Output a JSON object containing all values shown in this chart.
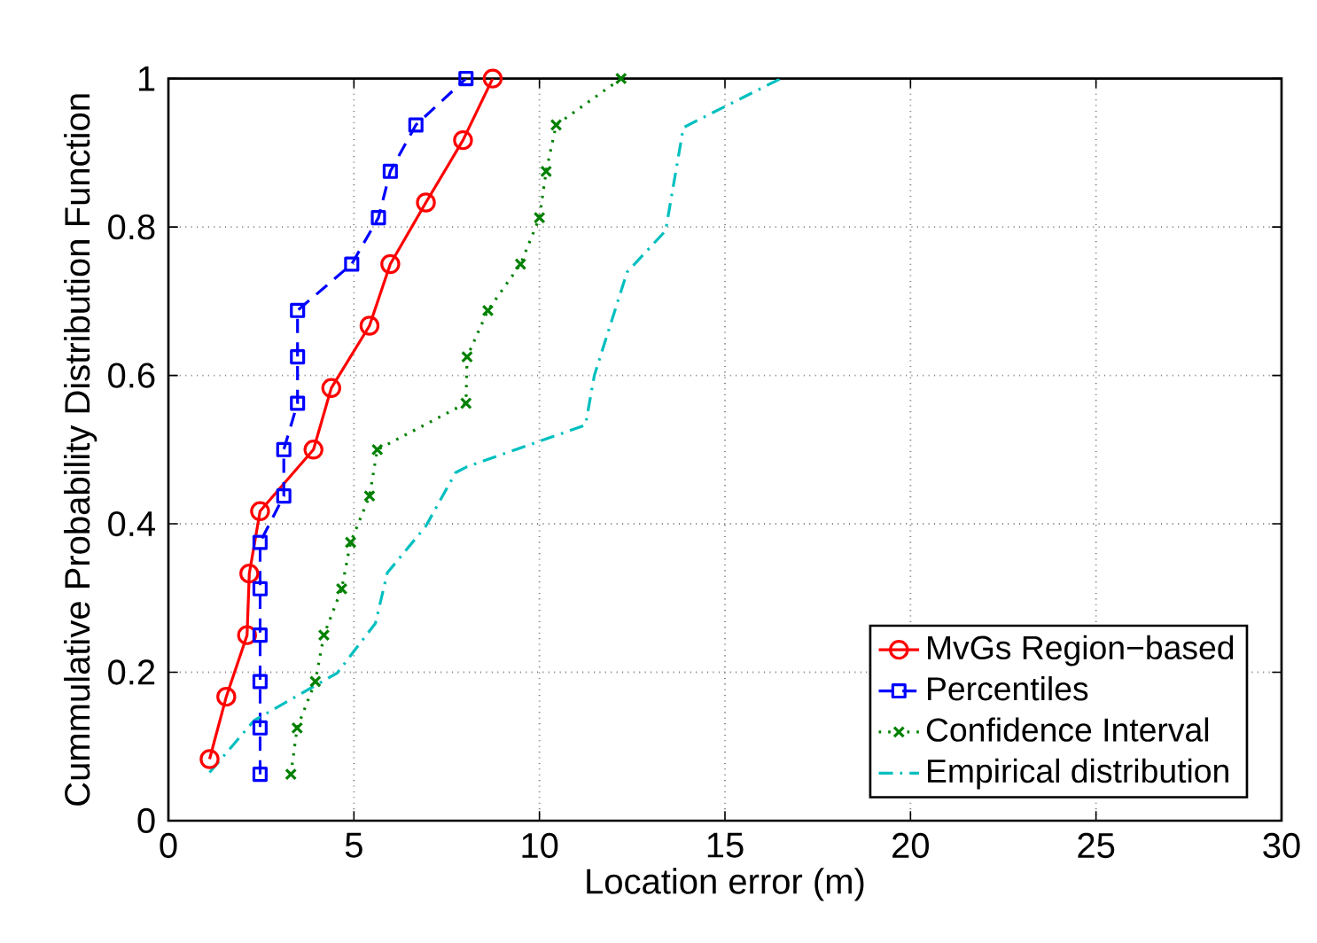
{
  "chart_data": {
    "type": "line",
    "xlabel": "Location error (m)",
    "ylabel": "Cummulative Probability Distribution Function",
    "xlim": [
      0,
      30
    ],
    "ylim": [
      0,
      1
    ],
    "xticks": [
      0,
      5,
      10,
      15,
      20,
      25,
      30
    ],
    "yticks": [
      0,
      0.2,
      0.4,
      0.6,
      0.8,
      1
    ],
    "grid": true,
    "legend": "bottom right",
    "series": [
      {
        "name": "MvGs Region−based",
        "color": "#ff0000",
        "marker": "circle",
        "line_style": "solid",
        "x": [
          1.11,
          1.56,
          2.12,
          2.18,
          2.47,
          3.91,
          4.39,
          5.42,
          5.98,
          6.94,
          7.94,
          8.74
        ],
        "values": [
          0.083,
          0.167,
          0.25,
          0.333,
          0.417,
          0.5,
          0.583,
          0.667,
          0.75,
          0.833,
          0.917,
          1.0
        ]
      },
      {
        "name": "Percentiles",
        "color": "#0000ff",
        "marker": "square",
        "line_style": "dashed",
        "x": [
          2.47,
          2.47,
          2.47,
          2.47,
          2.47,
          2.47,
          3.11,
          3.11,
          3.48,
          3.48,
          3.48,
          4.94,
          5.66,
          5.98,
          6.67,
          8.02
        ],
        "values": [
          0.0625,
          0.125,
          0.1875,
          0.25,
          0.3125,
          0.375,
          0.4375,
          0.5,
          0.5625,
          0.625,
          0.6875,
          0.75,
          0.8125,
          0.875,
          0.9375,
          1.0
        ]
      },
      {
        "name": "Confidence Interval",
        "color": "#008000",
        "marker": "cross",
        "line_style": "dotted",
        "x": [
          3.3,
          3.47,
          3.96,
          4.19,
          4.67,
          4.91,
          5.42,
          5.63,
          8.02,
          8.05,
          8.61,
          9.49,
          10.0,
          10.18,
          10.45,
          12.2
        ],
        "values": [
          0.0625,
          0.125,
          0.1875,
          0.25,
          0.3125,
          0.375,
          0.4375,
          0.5,
          0.5625,
          0.625,
          0.6875,
          0.75,
          0.8125,
          0.875,
          0.9375,
          1.0
        ]
      },
      {
        "name": "Empirical distribution",
        "color": "#00bfbf",
        "marker": "none",
        "line_style": "dashdot",
        "x": [
          1.11,
          2.31,
          4.55,
          5.58,
          5.9,
          6.94,
          7.74,
          8.05,
          11.24,
          11.48,
          12.36,
          13.4,
          13.88,
          14.35,
          16.5
        ],
        "values": [
          0.065,
          0.135,
          0.199,
          0.266,
          0.334,
          0.397,
          0.469,
          0.477,
          0.533,
          0.6,
          0.739,
          0.795,
          0.934,
          0.946,
          1.0
        ]
      }
    ]
  }
}
